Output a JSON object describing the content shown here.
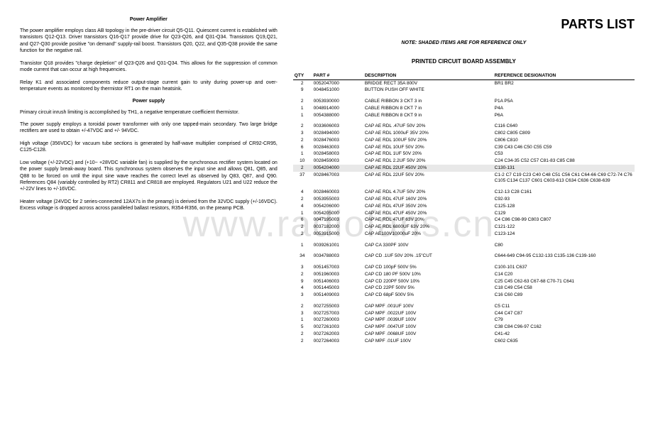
{
  "watermark": "www.radiofans.cn",
  "left": {
    "title1": "Power Amplifier",
    "p1": "The power amplifier employs class AB topology in the pre-driver circuit Q5-Q11. Quiescent current is established with transistors Q12-Q13. Driver transistors Q16-Q17 provide drive for Q23-Q26, and Q31-Q34. Transistors Q19,Q21, and Q27-Q30 provide positive \"on demand\" supply-rail boost. Transistors Q20, Q22, and Q35-Q38 provide the same function for the negative rail.",
    "p2": "Transistor Q18 provides \"charge depletion\" of Q23-Q26 and Q31-Q34. This allows for the suppression of common mode current that can occur at high frequencies.",
    "p3": "Relay K1 and associated components reduce output-stage current gain to unity during power-up and over-temperature events as monitored by thermistor RT1 on the main heatsink.",
    "title2": "Power supply",
    "p4": "Primary circuit inrush limiting is accomplished by TH1, a negative temperature coefficient thermistor.",
    "p5": "The power supply employs a toroidal power transformer with only one tapped-main secondary. Two large bridge rectifiers are used to obtain +/-47VDC and +/- 94VDC.",
    "p6": "High voltage (356VDC) for vacuum tube sections is generated by half-wave multiplier comprised of CR92-CR95, C125-C128.",
    "p7": "Low voltage (+/-22VDC) and (+10~ +28VDC variable fan) is supplied by the synchronous rectifier system located on the power supply break-away board. This synchronous system observes the input sine and allows Q81, Q85, and Q88 to be forced on until the input sine wave reaches the correct level as observed by Q83, Q87, and Q90. References Q84 (variably controlled by RT2) CR811 and CR818 are employed. Regulators U21 and U22 reduce the +/-22V lines to +/-16VDC.",
    "p8": "Heater voltage (24VDC for 2 series-connected 12AX7s in the preamp) is derived from the 32VDC supply (+/-16VDC). Excess voltage is dropped across across paralleled ballast resistors, R354-R356, on the preamp PCB."
  },
  "right": {
    "title": "PARTS LIST",
    "note": "NOTE: SHADED ITEMS ARE FOR REFERENCE ONLY",
    "assembly_title": "PRINTED CIRCUIT BOARD ASSEMBLY",
    "headers": {
      "qty": "QTY",
      "part": "PART #",
      "desc": "DESCRIPTION",
      "ref": "REFERENCE  DESIGNATION"
    },
    "groups": [
      [
        {
          "q": "2",
          "p": "0052047000",
          "d": "BRIDGE RECT 35A 800V",
          "r": "BR1 BR2"
        },
        {
          "q": "9",
          "p": "0048451000",
          "d": "BUTTON PUSH OFF WHITE",
          "r": ""
        }
      ],
      [
        {
          "q": "2",
          "p": "0053930000",
          "d": "CABLE RIBBON 3 CKT 3 in",
          "r": "P1A P5A"
        },
        {
          "q": "1",
          "p": "0048914000",
          "d": "CABLE RIBBON 8 CKT 7 in",
          "r": "P4A"
        },
        {
          "q": "1",
          "p": "0054388000",
          "d": "CABLE RIBBON 8 CKT 9 in",
          "r": "P6A"
        }
      ],
      [
        {
          "q": "2",
          "p": "0033606003",
          "d": "CAP AE RDL .47UF 50V 20%",
          "r": "C116 C640"
        },
        {
          "q": "3",
          "p": "0028494000",
          "d": "CAP AE RDL 1000uF 35V 20%",
          "r": "C802 C805 C809"
        },
        {
          "q": "2",
          "p": "0028476003",
          "d": "CAP AE RDL 100UF 50V 20%",
          "r": "C806 C810"
        },
        {
          "q": "6",
          "p": "0028463003",
          "d": "CAP AE RDL 10UF 50V 20%",
          "r": "C39 C43 C46 C50 C55 C59"
        },
        {
          "q": "1",
          "p": "0028458003",
          "d": "CAP AE RDL 1UF 50V 20%",
          "r": "C53"
        },
        {
          "q": "10",
          "p": "0028459003",
          "d": "CAP AE RDL 2.2UF 50V 20%",
          "r": "C24 C34-35 C52 C57 C81-83 C85 C88"
        },
        {
          "q": "2",
          "p": "0054204000",
          "d": "CAP AE RDL 22UF 450V 20%",
          "r": "C130-131",
          "shaded": true
        },
        {
          "q": "37",
          "p": "0028467003",
          "d": "CAP AE RDL 22UF 50V 20%",
          "r": "C1-2 C7 C19 C23 C40 C48 C51 C56 C61 C64-66 C69 C72-74 C76 C105 C134 C137 C601 C603-613 C634 C636 C638-639"
        }
      ],
      [
        {
          "q": "4",
          "p": "0028460003",
          "d": "CAP AE RDL 4.7UF 50V 20%",
          "r": "C12-13 C28 C161"
        },
        {
          "q": "2",
          "p": "0053955003",
          "d": "CAP AE RDL 47UF 160V 20%",
          "r": "C92-93"
        },
        {
          "q": "4",
          "p": "0054206000",
          "d": "CAP AE RDL 47UF 350V 20%",
          "r": "C125-128"
        },
        {
          "q": "1",
          "p": "0054205000",
          "d": "CAP AE RDL 47UF 450V 20%",
          "r": "C129"
        },
        {
          "q": "6",
          "p": "0047195003",
          "d": "CAP AE RDL 47UF 63V 20%",
          "r": "C4 C86 C98-99 C803 C807"
        },
        {
          "q": "2",
          "p": "0037182000",
          "d": "CAP AE RDL 6800UF 63V 20%",
          "r": "C121-122"
        },
        {
          "q": "2",
          "p": "0053915000",
          "d": "CAP AE100V10000uF 20%",
          "r": "C123-124"
        }
      ],
      [
        {
          "q": "1",
          "p": "0039261001",
          "d": "CAP CA 330PF 100V",
          "r": "C80"
        }
      ],
      [
        {
          "q": "34",
          "p": "0034788003",
          "d": "CAP CD .1UF 50V 20% .15\"CUT",
          "r": "C644-649 C94-95 C132-133 C135-136 C139-160"
        }
      ],
      [
        {
          "q": "3",
          "p": "0051457003",
          "d": "CAP CD 100pF 500V 5%",
          "r": "C100-101 C637"
        },
        {
          "q": "2",
          "p": "0051960003",
          "d": "CAP CD 180 PF 500V 10%",
          "r": "C14 C20"
        },
        {
          "q": "9",
          "p": "0051406003",
          "d": "CAP CD 220PF 500V 10%",
          "r": "C25 C45 C62-63 C67-68 C70-71 C641"
        },
        {
          "q": "4",
          "p": "0051445003",
          "d": "CAP CD 22PF 500V 5%",
          "r": "C18 C49 C54 C58"
        },
        {
          "q": "3",
          "p": "0051409003",
          "d": "CAP CD 68pF 500V 5%",
          "r": "C16 C60 C89"
        }
      ],
      [
        {
          "q": "2",
          "p": "0027255003",
          "d": "CAP MPF .001UF 100V",
          "r": "C5 C11"
        },
        {
          "q": "3",
          "p": "0027257003",
          "d": "CAP MPF .0022UF 100V",
          "r": "C44 C47 C87"
        },
        {
          "q": "1",
          "p": "0027260003",
          "d": "CAP MPF .0039UF 100V",
          "r": "C79"
        },
        {
          "q": "5",
          "p": "0027261003",
          "d": "CAP MPF .0047UF 100V",
          "r": "C38 C84 C96-97 C162"
        },
        {
          "q": "2",
          "p": "0027262003",
          "d": "CAP MPF .0068UF 100V",
          "r": "C41-42"
        },
        {
          "q": "2",
          "p": "0027264003",
          "d": "CAP MPF .01UF 100V",
          "r": "C602 C635"
        }
      ]
    ]
  }
}
